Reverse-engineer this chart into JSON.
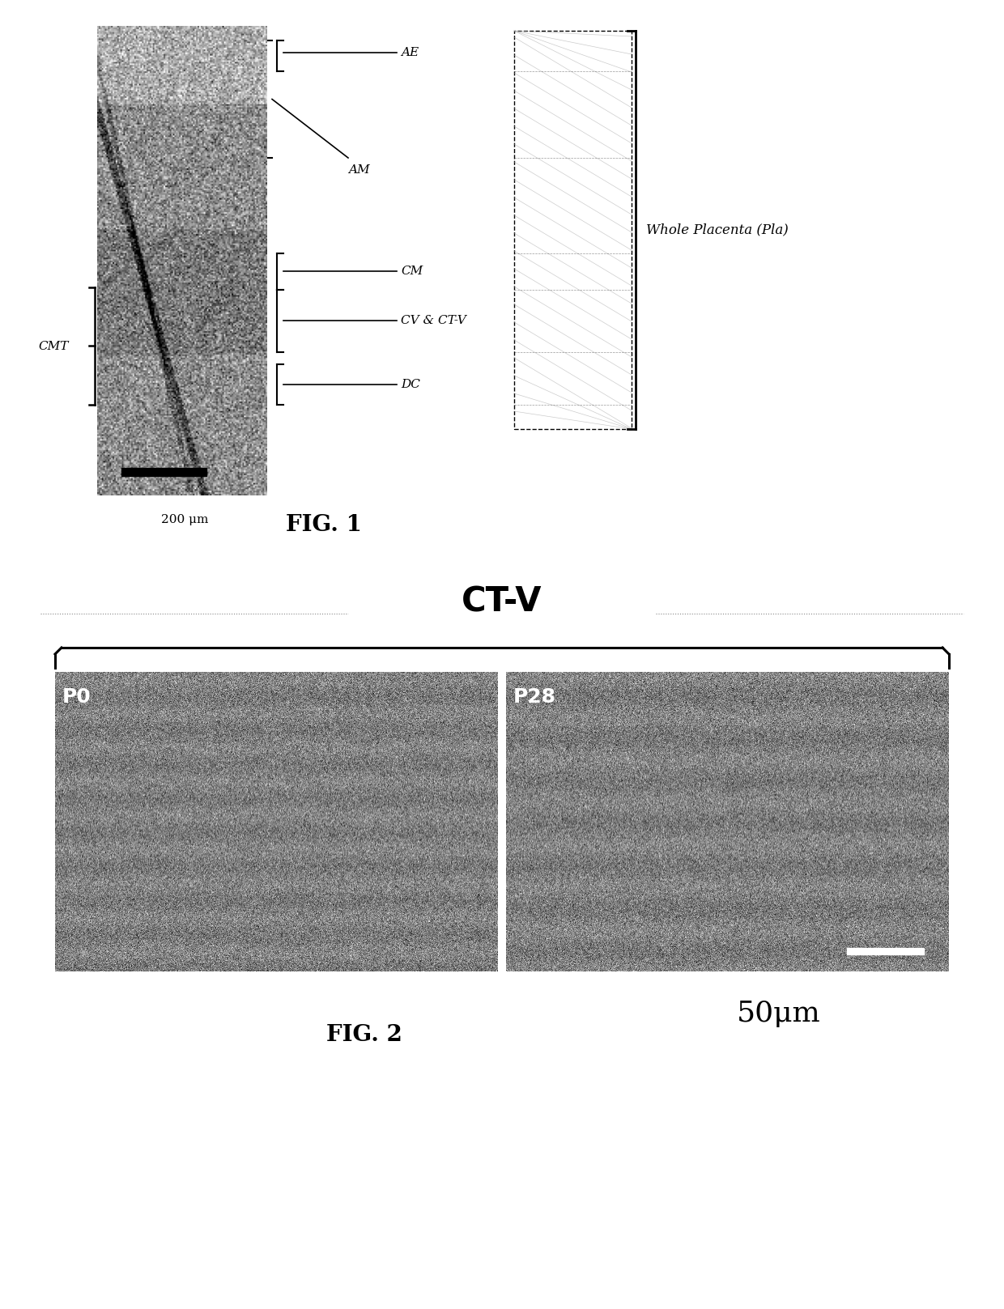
{
  "fig_width": 12.4,
  "fig_height": 16.17,
  "bg_color": "#ffffff",
  "fig1_label": "FIG. 1",
  "fig2_label": "FIG. 2",
  "ctv_label": "CT-V",
  "scale_bar_fig1": "200 μm",
  "scale_bar_fig2": "50μm",
  "diagram_labels": [
    "AE",
    "AM",
    "CM",
    "CV & CT-V",
    "DC"
  ],
  "diagram_bracket_label": "Whole Placenta (Pla)",
  "cmt_label": "CMT",
  "p0_label": "P0",
  "p28_label": "P28"
}
